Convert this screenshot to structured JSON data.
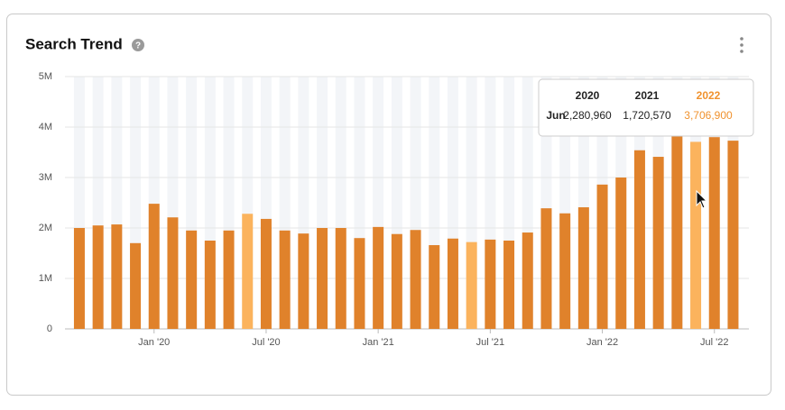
{
  "chart_data": {
    "type": "bar",
    "title": "Search Trend",
    "categories": [
      null,
      null,
      null,
      null,
      "Jan '20",
      null,
      null,
      null,
      null,
      null,
      "Jul '20",
      null,
      null,
      null,
      null,
      null,
      "Jan '21",
      null,
      null,
      null,
      null,
      null,
      "Jul '21",
      null,
      null,
      null,
      null,
      null,
      "Jan '22",
      null,
      null,
      null,
      null,
      null,
      "Jul '22",
      null
    ],
    "values": [
      2000000,
      2050000,
      2070000,
      1700000,
      2480000,
      2210000,
      1950000,
      1750000,
      1950000,
      2280960,
      2180000,
      1950000,
      1890000,
      2000000,
      2000000,
      1800000,
      2020000,
      1880000,
      1960000,
      1660000,
      1790000,
      1720570,
      1770000,
      1750000,
      1910000,
      2390000,
      2290000,
      2410000,
      2860000,
      3000000,
      3540000,
      3410000,
      3860000,
      3706900,
      3800000,
      3730000
    ],
    "colors": [
      "#e0822b",
      "#e0822b",
      "#e0822b",
      "#e0822b",
      "#e0822b",
      "#e0822b",
      "#e0822b",
      "#e0822b",
      "#e0822b",
      "#fbb35d",
      "#e0822b",
      "#e0822b",
      "#e0822b",
      "#e0822b",
      "#e0822b",
      "#e0822b",
      "#e0822b",
      "#e0822b",
      "#e0822b",
      "#e0822b",
      "#e0822b",
      "#fbb35d",
      "#e0822b",
      "#e0822b",
      "#e0822b",
      "#e0822b",
      "#e0822b",
      "#e0822b",
      "#e0822b",
      "#e0822b",
      "#e0822b",
      "#e0822b",
      "#e0822b",
      "#fbb35d",
      "#e0822b",
      "#e0822b"
    ],
    "ylim": [
      0,
      5000000
    ],
    "yticks": [
      0,
      {
        "value": 1000000,
        "label": "1M"
      },
      {
        "value": 2000000,
        "label": "2M"
      },
      {
        "value": 3000000,
        "label": "3M"
      },
      {
        "value": 4000000,
        "label": "4M"
      },
      {
        "value": 5000000,
        "label": "5M"
      }
    ],
    "grid": true,
    "tooltip": {
      "row": "Jun",
      "headers": [
        "2020",
        "2021",
        "2022"
      ],
      "cells": [
        "2,280,960",
        "1,720,570",
        "3,706,900"
      ],
      "highlight_color": "#f0922e"
    }
  }
}
